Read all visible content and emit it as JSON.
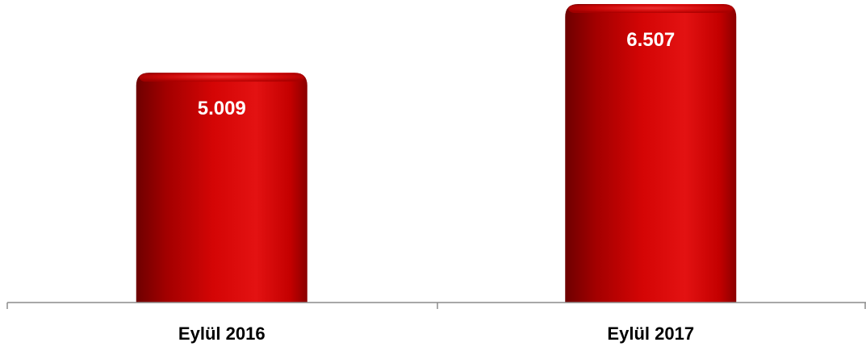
{
  "chart_data": {
    "type": "bar",
    "title": "",
    "xlabel": "",
    "ylabel": "",
    "categories": [
      "Eylül 2016",
      "Eylül 2017"
    ],
    "values": [
      5009,
      6507
    ],
    "value_labels": [
      "5.009",
      "6.507"
    ],
    "ylim": [
      0,
      7000
    ],
    "grid": false,
    "legend": "none",
    "colors": {
      "bar_main": "#cc0000",
      "bar_dark": "#7a0000",
      "bar_light": "#e01010",
      "value_text": "#ffffff",
      "axis_line": "#7f7f7f",
      "category_text": "#000000"
    }
  }
}
